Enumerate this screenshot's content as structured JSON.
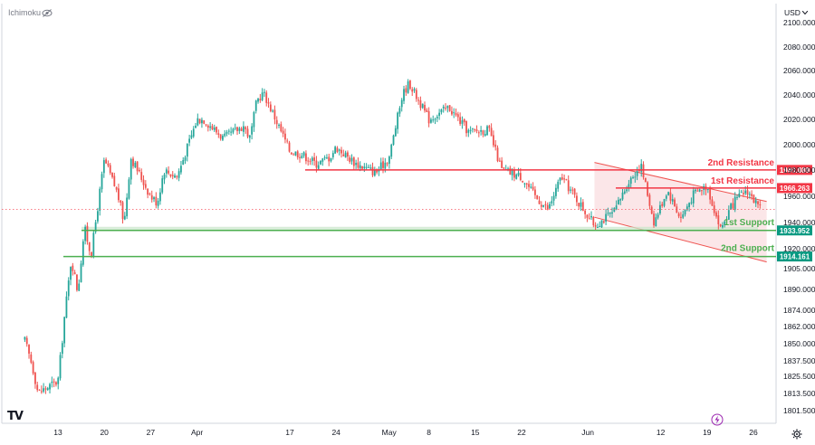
{
  "indicator_label": "Ichimoku",
  "currency_label": "USD",
  "icons": {
    "eye": "eye-icon",
    "caret": "chevron-down-icon",
    "logo": "tradingview-logo-icon",
    "bolt": "lightning-icon",
    "settings": "gear-icon"
  },
  "colors": {
    "resistance": "#f23645",
    "support": "#089981",
    "support_line": "#4caf50",
    "bull": "#26a69a",
    "bear": "#ef5350",
    "channel_fill": "#f8d5d8",
    "current_price_line": "#f7525f",
    "bolt": "#9c27b0"
  },
  "chart_data": {
    "type": "candlestick",
    "y_axis_ticks": [
      "2100.000",
      "2080.000",
      "2060.000",
      "2040.000",
      "2020.000",
      "2000.000",
      "1980.000",
      "1960.000",
      "1940.000",
      "1920.000",
      "1905.000",
      "1890.000",
      "1874.000",
      "1862.000",
      "1850.000",
      "1837.500",
      "1825.500",
      "1813.500",
      "1801.500"
    ],
    "x_axis_ticks": [
      "13",
      "20",
      "27",
      "Apr",
      "17",
      "24",
      "May",
      "8",
      "15",
      "22",
      "Jun",
      "12",
      "19",
      "26"
    ],
    "levels": [
      {
        "name": "2nd Resistance",
        "value": 1980.089,
        "label": "1980.089",
        "kind": "resistance"
      },
      {
        "name": "1st Resistance",
        "value": 1966.263,
        "label": "1966.263",
        "kind": "resistance"
      },
      {
        "name": "1st Support",
        "value": 1933.952,
        "label": "1933.952",
        "kind": "support"
      },
      {
        "name": "2nd Support",
        "value": 1914.161,
        "label": "1914.161",
        "kind": "support"
      }
    ],
    "price_path": [
      {
        "date": "Mar 8",
        "price": 1852
      },
      {
        "date": "Mar 9",
        "price": 1836
      },
      {
        "date": "Mar 10",
        "price": 1814
      },
      {
        "date": "Mar 13",
        "price": 1822
      },
      {
        "date": "Mar 14",
        "price": 1870
      },
      {
        "date": "Mar 15",
        "price": 1912
      },
      {
        "date": "Mar 16",
        "price": 1888
      },
      {
        "date": "Mar 17",
        "price": 1936
      },
      {
        "date": "Mar 18",
        "price": 1915
      },
      {
        "date": "Mar 20",
        "price": 1988
      },
      {
        "date": "Mar 22",
        "price": 1962
      },
      {
        "date": "Mar 23",
        "price": 1940
      },
      {
        "date": "Mar 24",
        "price": 1990
      },
      {
        "date": "Mar 27",
        "price": 1960
      },
      {
        "date": "Mar 28",
        "price": 1955
      },
      {
        "date": "Mar 29",
        "price": 1980
      },
      {
        "date": "Mar 31",
        "price": 1975
      },
      {
        "date": "Apr 3",
        "price": 2020
      },
      {
        "date": "Apr 4",
        "price": 2020
      },
      {
        "date": "Apr 7",
        "price": 2005
      },
      {
        "date": "Apr 10",
        "price": 2015
      },
      {
        "date": "Apr 11",
        "price": 2005
      },
      {
        "date": "Apr 12",
        "price": 2035
      },
      {
        "date": "Apr 13",
        "price": 2042
      },
      {
        "date": "Apr 17",
        "price": 1995
      },
      {
        "date": "Apr 19",
        "price": 1992
      },
      {
        "date": "Apr 21",
        "price": 1985
      },
      {
        "date": "Apr 23",
        "price": 1990
      },
      {
        "date": "Apr 24",
        "price": 1998
      },
      {
        "date": "Apr 27",
        "price": 1985
      },
      {
        "date": "Apr 30",
        "price": 1978
      },
      {
        "date": "May 2",
        "price": 1990
      },
      {
        "date": "May 4",
        "price": 2040
      },
      {
        "date": "May 5",
        "price": 2050
      },
      {
        "date": "May 8",
        "price": 2020
      },
      {
        "date": "May 11",
        "price": 2030
      },
      {
        "date": "May 14",
        "price": 2010
      },
      {
        "date": "May 17",
        "price": 2012
      },
      {
        "date": "May 19",
        "price": 1980
      },
      {
        "date": "May 22",
        "price": 1975
      },
      {
        "date": "May 24",
        "price": 1960
      },
      {
        "date": "May 26",
        "price": 1950
      },
      {
        "date": "May 28",
        "price": 1975
      },
      {
        "date": "May 30",
        "price": 1960
      },
      {
        "date": "Jun 2",
        "price": 1938
      },
      {
        "date": "Jun 5",
        "price": 1948
      },
      {
        "date": "Jun 7",
        "price": 1970
      },
      {
        "date": "Jun 9",
        "price": 1984
      },
      {
        "date": "Jun 11",
        "price": 1940
      },
      {
        "date": "Jun 13",
        "price": 1965
      },
      {
        "date": "Jun 15",
        "price": 1943
      },
      {
        "date": "Jun 17",
        "price": 1962
      },
      {
        "date": "Jun 19",
        "price": 1968
      },
      {
        "date": "Jun 21",
        "price": 1935
      },
      {
        "date": "Jun 23",
        "price": 1955
      },
      {
        "date": "Jun 25",
        "price": 1965
      },
      {
        "date": "Jun 27",
        "price": 1950
      }
    ],
    "channel": {
      "upper": [
        {
          "date": "Jun 2",
          "price": 1986
        },
        {
          "date": "Jun 28",
          "price": 1956
        }
      ],
      "lower": [
        {
          "date": "Jun 2",
          "price": 1944
        },
        {
          "date": "Jun 28",
          "price": 1910
        }
      ]
    },
    "current_price": 1950,
    "grid": false,
    "legend": "none"
  }
}
